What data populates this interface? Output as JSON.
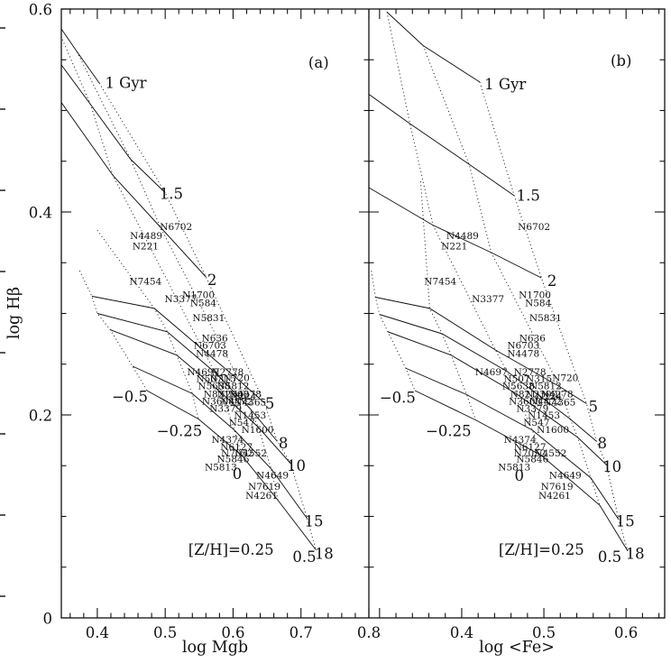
{
  "figure": {
    "background": "#ffffff",
    "ink": "#111111",
    "y_axis": {
      "label": "log Hβ",
      "range": [
        0,
        0.6
      ],
      "tick_values": [
        0,
        0.2,
        0.4,
        0.6
      ],
      "tick_labels": [
        "0",
        "0.2",
        "0.4",
        "0.6"
      ],
      "minor_step": 0.05
    },
    "panels": [
      {
        "id": "a",
        "corner_label": "(a)",
        "x_axis": {
          "label": "log Mgb",
          "range": [
            0.347,
            0.8
          ],
          "tick_values": [
            0.4,
            0.5,
            0.6,
            0.7,
            0.8
          ],
          "tick_labels": [
            "0.4",
            "0.5",
            "0.6",
            "0.7",
            "0.8"
          ],
          "minor_step": 0.02
        }
      },
      {
        "id": "b",
        "corner_label": "(b)",
        "x_axis": {
          "label": "log <Fe>",
          "range": [
            0.287,
            0.647
          ],
          "tick_values": [
            0.4,
            0.5,
            0.6
          ],
          "tick_labels": [
            "0.4",
            "0.5",
            "0.6"
          ],
          "minor_step": 0.02
        }
      }
    ]
  },
  "chart_data": {
    "type": "scatter",
    "title": "",
    "description": "Galaxy Balmer-line index log H-beta versus metal-line indices log Mgb (panel a) and log <Fe> (panel b), with single-burst stellar population model grid: solid lines are constant age (Gyr), dotted lines are constant metallicity [Z/H]. Galaxies are plotted as their NGC name labels.",
    "y_axis": {
      "label": "log Hβ",
      "range": [
        0,
        0.6
      ]
    },
    "panels": [
      {
        "id": "a",
        "x_label": "log Mgb",
        "x_range": [
          0.347,
          0.8
        ]
      },
      {
        "id": "b",
        "x_label": "log <Fe>",
        "x_range": [
          0.287,
          0.647
        ]
      }
    ],
    "model_ages_gyr": [
      1,
      1.5,
      2,
      5,
      8,
      10,
      15,
      18
    ],
    "model_metallicities": [
      -0.5,
      -0.25,
      0,
      0.25,
      0.5
    ],
    "age_lines": {
      "a": [
        [
          [
            0.334,
            0.593
          ],
          [
            0.37,
            0.558
          ],
          [
            0.403,
            0.527
          ]
        ],
        [
          [
            0.316,
            0.573
          ],
          [
            0.39,
            0.506
          ],
          [
            0.449,
            0.452
          ],
          [
            0.5,
            0.419
          ]
        ],
        [
          [
            0.33,
            0.524
          ],
          [
            0.423,
            0.436
          ],
          [
            0.493,
            0.385
          ],
          [
            0.56,
            0.336
          ]
        ],
        [
          [
            0.392,
            0.317
          ],
          [
            0.484,
            0.305
          ],
          [
            0.556,
            0.264
          ],
          [
            0.609,
            0.234
          ],
          [
            0.646,
            0.212
          ]
        ],
        [
          [
            0.4,
            0.3
          ],
          [
            0.503,
            0.282
          ],
          [
            0.573,
            0.242
          ],
          [
            0.624,
            0.207
          ],
          [
            0.665,
            0.174
          ]
        ],
        [
          [
            0.419,
            0.284
          ],
          [
            0.517,
            0.259
          ],
          [
            0.584,
            0.221
          ],
          [
            0.637,
            0.188
          ],
          [
            0.685,
            0.152
          ]
        ],
        [
          [
            0.452,
            0.248
          ],
          [
            0.54,
            0.221
          ],
          [
            0.602,
            0.185
          ],
          [
            0.656,
            0.147
          ],
          [
            0.709,
            0.098
          ]
        ],
        [
          [
            0.473,
            0.224
          ],
          [
            0.549,
            0.196
          ],
          [
            0.613,
            0.16
          ],
          [
            0.666,
            0.116
          ],
          [
            0.722,
            0.067
          ]
        ]
      ],
      "b": [
        [
          [
            0.309,
            0.597
          ],
          [
            0.353,
            0.564
          ],
          [
            0.422,
            0.528
          ]
        ],
        [
          [
            0.287,
            0.516
          ],
          [
            0.337,
            0.487
          ],
          [
            0.409,
            0.447
          ],
          [
            0.464,
            0.416
          ]
        ],
        [
          [
            0.287,
            0.424
          ],
          [
            0.365,
            0.387
          ],
          [
            0.436,
            0.36
          ],
          [
            0.497,
            0.335
          ]
        ],
        [
          [
            0.295,
            0.316
          ],
          [
            0.361,
            0.305
          ],
          [
            0.441,
            0.264
          ],
          [
            0.519,
            0.228
          ],
          [
            0.552,
            0.211
          ]
        ],
        [
          [
            0.3,
            0.299
          ],
          [
            0.376,
            0.28
          ],
          [
            0.455,
            0.243
          ],
          [
            0.532,
            0.196
          ],
          [
            0.564,
            0.174
          ]
        ],
        [
          [
            0.31,
            0.282
          ],
          [
            0.387,
            0.259
          ],
          [
            0.466,
            0.221
          ],
          [
            0.541,
            0.178
          ],
          [
            0.576,
            0.151
          ]
        ],
        [
          [
            0.332,
            0.246
          ],
          [
            0.406,
            0.22
          ],
          [
            0.486,
            0.185
          ],
          [
            0.557,
            0.138
          ],
          [
            0.591,
            0.097
          ]
        ],
        [
          [
            0.343,
            0.224
          ],
          [
            0.417,
            0.195
          ],
          [
            0.497,
            0.16
          ],
          [
            0.568,
            0.111
          ],
          [
            0.602,
            0.066
          ]
        ]
      ]
    },
    "z_lines": {
      "a": [
        [
          [
            0.374,
            0.342
          ],
          [
            0.392,
            0.317
          ],
          [
            0.4,
            0.3
          ],
          [
            0.419,
            0.284
          ],
          [
            0.452,
            0.248
          ],
          [
            0.473,
            0.224
          ]
        ],
        [
          [
            0.4,
            0.382
          ],
          [
            0.484,
            0.305
          ],
          [
            0.503,
            0.282
          ],
          [
            0.517,
            0.259
          ],
          [
            0.54,
            0.221
          ],
          [
            0.549,
            0.196
          ]
        ],
        [
          [
            0.342,
            0.58
          ],
          [
            0.39,
            0.506
          ],
          [
            0.423,
            0.436
          ],
          [
            0.556,
            0.264
          ],
          [
            0.573,
            0.242
          ],
          [
            0.584,
            0.221
          ],
          [
            0.602,
            0.185
          ],
          [
            0.613,
            0.16
          ]
        ],
        [
          [
            0.37,
            0.558
          ],
          [
            0.449,
            0.452
          ],
          [
            0.493,
            0.385
          ],
          [
            0.609,
            0.234
          ],
          [
            0.624,
            0.207
          ],
          [
            0.637,
            0.188
          ],
          [
            0.656,
            0.147
          ],
          [
            0.666,
            0.116
          ]
        ],
        [
          [
            0.403,
            0.527
          ],
          [
            0.5,
            0.419
          ],
          [
            0.56,
            0.336
          ],
          [
            0.646,
            0.212
          ],
          [
            0.665,
            0.174
          ],
          [
            0.685,
            0.152
          ],
          [
            0.709,
            0.098
          ],
          [
            0.722,
            0.067
          ]
        ]
      ],
      "b": [
        [
          [
            0.29,
            0.342
          ],
          [
            0.295,
            0.316
          ],
          [
            0.3,
            0.299
          ],
          [
            0.31,
            0.282
          ],
          [
            0.332,
            0.246
          ],
          [
            0.343,
            0.224
          ]
        ],
        [
          [
            0.35,
            0.43
          ],
          [
            0.361,
            0.305
          ],
          [
            0.376,
            0.28
          ],
          [
            0.387,
            0.259
          ],
          [
            0.406,
            0.22
          ],
          [
            0.417,
            0.195
          ]
        ],
        [
          [
            0.309,
            0.597
          ],
          [
            0.337,
            0.487
          ],
          [
            0.365,
            0.387
          ],
          [
            0.441,
            0.264
          ],
          [
            0.455,
            0.243
          ],
          [
            0.466,
            0.221
          ],
          [
            0.486,
            0.185
          ],
          [
            0.497,
            0.16
          ]
        ],
        [
          [
            0.353,
            0.564
          ],
          [
            0.409,
            0.447
          ],
          [
            0.436,
            0.36
          ],
          [
            0.519,
            0.228
          ],
          [
            0.532,
            0.196
          ],
          [
            0.541,
            0.178
          ],
          [
            0.557,
            0.138
          ],
          [
            0.568,
            0.111
          ]
        ],
        [
          [
            0.422,
            0.528
          ],
          [
            0.464,
            0.416
          ],
          [
            0.497,
            0.335
          ],
          [
            0.552,
            0.211
          ],
          [
            0.564,
            0.174
          ],
          [
            0.576,
            0.151
          ],
          [
            0.591,
            0.097
          ],
          [
            0.602,
            0.066
          ]
        ]
      ]
    },
    "galaxies": [
      {
        "name": "N6702",
        "mgb": 0.516,
        "fe": 0.488,
        "hbeta": 0.385
      },
      {
        "name": "N4489",
        "mgb": 0.472,
        "fe": 0.401,
        "hbeta": 0.376
      },
      {
        "name": "N221",
        "mgb": 0.471,
        "fe": 0.391,
        "hbeta": 0.366
      },
      {
        "name": "N7454",
        "mgb": 0.471,
        "fe": 0.374,
        "hbeta": 0.331
      },
      {
        "name": "N3377",
        "mgb": 0.523,
        "fe": 0.432,
        "hbeta": 0.314
      },
      {
        "name": "N1700",
        "mgb": 0.549,
        "fe": 0.489,
        "hbeta": 0.318
      },
      {
        "name": "N584",
        "mgb": 0.556,
        "fe": 0.493,
        "hbeta": 0.31
      },
      {
        "name": "N5831",
        "mgb": 0.564,
        "fe": 0.502,
        "hbeta": 0.295
      },
      {
        "name": "N636",
        "mgb": 0.573,
        "fe": 0.486,
        "hbeta": 0.275
      },
      {
        "name": "N6703",
        "mgb": 0.566,
        "fe": 0.475,
        "hbeta": 0.268
      },
      {
        "name": "N4478",
        "mgb": 0.569,
        "fe": 0.475,
        "hbeta": 0.26
      },
      {
        "name": "N4697",
        "mgb": 0.556,
        "fe": 0.436,
        "hbeta": 0.242
      },
      {
        "name": "N2778",
        "mgb": 0.592,
        "fe": 0.483,
        "hbeta": 0.242
      },
      {
        "name": "N507",
        "mgb": 0.565,
        "fe": 0.467,
        "hbeta": 0.235
      },
      {
        "name": "N315",
        "mgb": 0.585,
        "fe": 0.494,
        "hbeta": 0.235
      },
      {
        "name": "N720",
        "mgb": 0.605,
        "fe": 0.526,
        "hbeta": 0.236
      },
      {
        "name": "N5638",
        "mgb": 0.572,
        "fe": 0.469,
        "hbeta": 0.228
      },
      {
        "name": "N5812",
        "mgb": 0.6,
        "fe": 0.502,
        "hbeta": 0.228
      },
      {
        "name": "N821",
        "mgb": 0.576,
        "fe": 0.475,
        "hbeta": 0.22
      },
      {
        "name": "N2300",
        "mgb": 0.6,
        "fe": 0.497,
        "hbeta": 0.22
      },
      {
        "name": "N4278",
        "mgb": 0.618,
        "fe": 0.516,
        "hbeta": 0.22
      },
      {
        "name": "N224",
        "mgb": 0.615,
        "fe": 0.506,
        "hbeta": 0.218
      },
      {
        "name": "N3608",
        "mgb": 0.578,
        "fe": 0.477,
        "hbeta": 0.213
      },
      {
        "name": "N4472",
        "mgb": 0.605,
        "fe": 0.502,
        "hbeta": 0.213
      },
      {
        "name": "N4365",
        "mgb": 0.625,
        "fe": 0.519,
        "hbeta": 0.212
      },
      {
        "name": "N3379",
        "mgb": 0.589,
        "fe": 0.486,
        "hbeta": 0.206
      },
      {
        "name": "N1453",
        "mgb": 0.625,
        "fe": 0.5,
        "hbeta": 0.199
      },
      {
        "name": "N547",
        "mgb": 0.613,
        "fe": 0.491,
        "hbeta": 0.192
      },
      {
        "name": "N1600",
        "mgb": 0.636,
        "fe": 0.511,
        "hbeta": 0.185
      },
      {
        "name": "N4374",
        "mgb": 0.592,
        "fe": 0.471,
        "hbeta": 0.175
      },
      {
        "name": "N6127",
        "mgb": 0.605,
        "fe": 0.483,
        "hbeta": 0.168
      },
      {
        "name": "N7052",
        "mgb": 0.606,
        "fe": 0.483,
        "hbeta": 0.162
      },
      {
        "name": "N4552",
        "mgb": 0.626,
        "fe": 0.508,
        "hbeta": 0.162
      },
      {
        "name": "N5846",
        "mgb": 0.6,
        "fe": 0.486,
        "hbeta": 0.156
      },
      {
        "name": "N5813",
        "mgb": 0.582,
        "fe": 0.464,
        "hbeta": 0.148
      },
      {
        "name": "N4649",
        "mgb": 0.658,
        "fe": 0.526,
        "hbeta": 0.14
      },
      {
        "name": "N7619",
        "mgb": 0.646,
        "fe": 0.516,
        "hbeta": 0.129
      },
      {
        "name": "N4261",
        "mgb": 0.642,
        "fe": 0.513,
        "hbeta": 0.12
      }
    ],
    "annotations": {
      "a": [
        {
          "text": "1 Gyr",
          "x": 0.442,
          "y": 0.527,
          "kind": "age"
        },
        {
          "text": "1.5",
          "x": 0.509,
          "y": 0.418,
          "kind": "age"
        },
        {
          "text": "2",
          "x": 0.569,
          "y": 0.333,
          "kind": "age"
        },
        {
          "text": "5",
          "x": 0.654,
          "y": 0.211,
          "kind": "age"
        },
        {
          "text": "8",
          "x": 0.674,
          "y": 0.172,
          "kind": "age"
        },
        {
          "text": "10",
          "x": 0.693,
          "y": 0.15,
          "kind": "age"
        },
        {
          "text": "15",
          "x": 0.719,
          "y": 0.095,
          "kind": "age"
        },
        {
          "text": "18",
          "x": 0.734,
          "y": 0.063,
          "kind": "age"
        },
        {
          "text": "−0.5",
          "x": 0.448,
          "y": 0.218,
          "kind": "metallicity"
        },
        {
          "text": "−0.25",
          "x": 0.521,
          "y": 0.184,
          "kind": "metallicity"
        },
        {
          "text": "0",
          "x": 0.606,
          "y": 0.142,
          "kind": "metallicity"
        },
        {
          "text": "[Z/H]=0.25",
          "x": 0.597,
          "y": 0.067,
          "kind": "metallicity"
        },
        {
          "text": "0.5",
          "x": 0.705,
          "y": 0.06,
          "kind": "metallicity"
        },
        {
          "text": "(a)",
          "x": 0.726,
          "y": 0.547,
          "kind": "panel"
        }
      ],
      "b": [
        {
          "text": "1 Gyr",
          "x": 0.453,
          "y": 0.526,
          "kind": "age"
        },
        {
          "text": "1.5",
          "x": 0.481,
          "y": 0.416,
          "kind": "age"
        },
        {
          "text": "2",
          "x": 0.51,
          "y": 0.332,
          "kind": "age"
        },
        {
          "text": "5",
          "x": 0.56,
          "y": 0.208,
          "kind": "age"
        },
        {
          "text": "8",
          "x": 0.571,
          "y": 0.172,
          "kind": "age"
        },
        {
          "text": "10",
          "x": 0.583,
          "y": 0.149,
          "kind": "age"
        },
        {
          "text": "15",
          "x": 0.599,
          "y": 0.095,
          "kind": "age"
        },
        {
          "text": "18",
          "x": 0.611,
          "y": 0.063,
          "kind": "age"
        },
        {
          "text": "−0.5",
          "x": 0.322,
          "y": 0.217,
          "kind": "metallicity"
        },
        {
          "text": "−0.25",
          "x": 0.384,
          "y": 0.184,
          "kind": "metallicity"
        },
        {
          "text": "0",
          "x": 0.47,
          "y": 0.14,
          "kind": "metallicity"
        },
        {
          "text": "[Z/H]=0.25",
          "x": 0.497,
          "y": 0.067,
          "kind": "metallicity"
        },
        {
          "text": "0.5",
          "x": 0.58,
          "y": 0.06,
          "kind": "metallicity"
        },
        {
          "text": "(b)",
          "x": 0.594,
          "y": 0.549,
          "kind": "panel"
        }
      ]
    }
  }
}
